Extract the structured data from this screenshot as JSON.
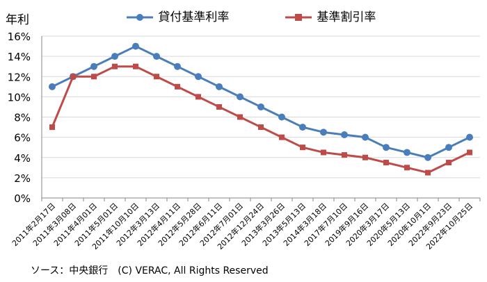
{
  "chart_data": {
    "type": "line",
    "ylabel": "年利",
    "source": "ソース：中央銀行　(C) VERAC, All Rights Reserved",
    "ylim": [
      0,
      16
    ],
    "yticks": [
      "0%",
      "2%",
      "4%",
      "6%",
      "8%",
      "10%",
      "12%",
      "14%",
      "16%"
    ],
    "grid": true,
    "legend_position": "top",
    "categories": [
      "2011年2月17日",
      "2011年3月08日",
      "2011年4月01日",
      "2011年5月01日",
      "2011年10月10日",
      "2012年3月13日",
      "2012年4月11日",
      "2012年5月28日",
      "2012年6月11日",
      "2012年7月01日",
      "2012年12月24日",
      "2013年3月26日",
      "2013年5月13日",
      "2014年3月18日",
      "2017年7月10日",
      "2019年9月16日",
      "2020年3月17日",
      "2020年5月13日",
      "2020年10月1日",
      "2022年9月23日",
      "2022年10月25日"
    ],
    "series": [
      {
        "name": "貸付基準利率",
        "color": "#4a7ebb",
        "marker": "circle",
        "values": [
          11,
          12,
          13,
          14,
          15,
          14,
          13,
          12,
          11,
          10,
          9,
          8,
          7,
          6.5,
          6.25,
          6,
          5,
          4.5,
          4,
          5,
          6
        ]
      },
      {
        "name": "基準割引率",
        "color": "#be4b48",
        "marker": "square",
        "values": [
          7,
          12,
          12,
          13,
          13,
          12,
          11,
          10,
          9,
          8,
          7,
          6,
          5,
          4.5,
          4.25,
          4,
          3.5,
          3,
          2.5,
          3.5,
          4.5
        ]
      }
    ]
  }
}
